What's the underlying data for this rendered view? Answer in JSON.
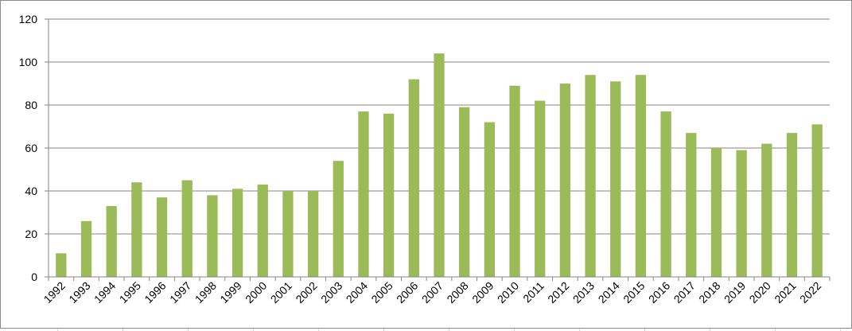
{
  "chart_data": {
    "type": "bar",
    "title": "",
    "xlabel": "",
    "ylabel": "",
    "ylim": [
      0,
      120
    ],
    "yticks": [
      0,
      20,
      40,
      60,
      80,
      100,
      120
    ],
    "grid": true,
    "legend": "none",
    "bar_color": "#9bbb59",
    "categories": [
      "1992",
      "1993",
      "1994",
      "1995",
      "1996",
      "1997",
      "1998",
      "1999",
      "2000",
      "2001",
      "2002",
      "2003",
      "2004",
      "2005",
      "2006",
      "2007",
      "2008",
      "2009",
      "2010",
      "2011",
      "2012",
      "2013",
      "2014",
      "2015",
      "2016",
      "2017",
      "2018",
      "2019",
      "2020",
      "2021",
      "2022"
    ],
    "values": [
      11,
      26,
      33,
      44,
      37,
      45,
      38,
      41,
      43,
      40,
      40,
      54,
      77,
      76,
      92,
      104,
      79,
      72,
      89,
      82,
      90,
      94,
      91,
      94,
      77,
      67,
      60,
      59,
      62,
      67,
      71
    ]
  }
}
